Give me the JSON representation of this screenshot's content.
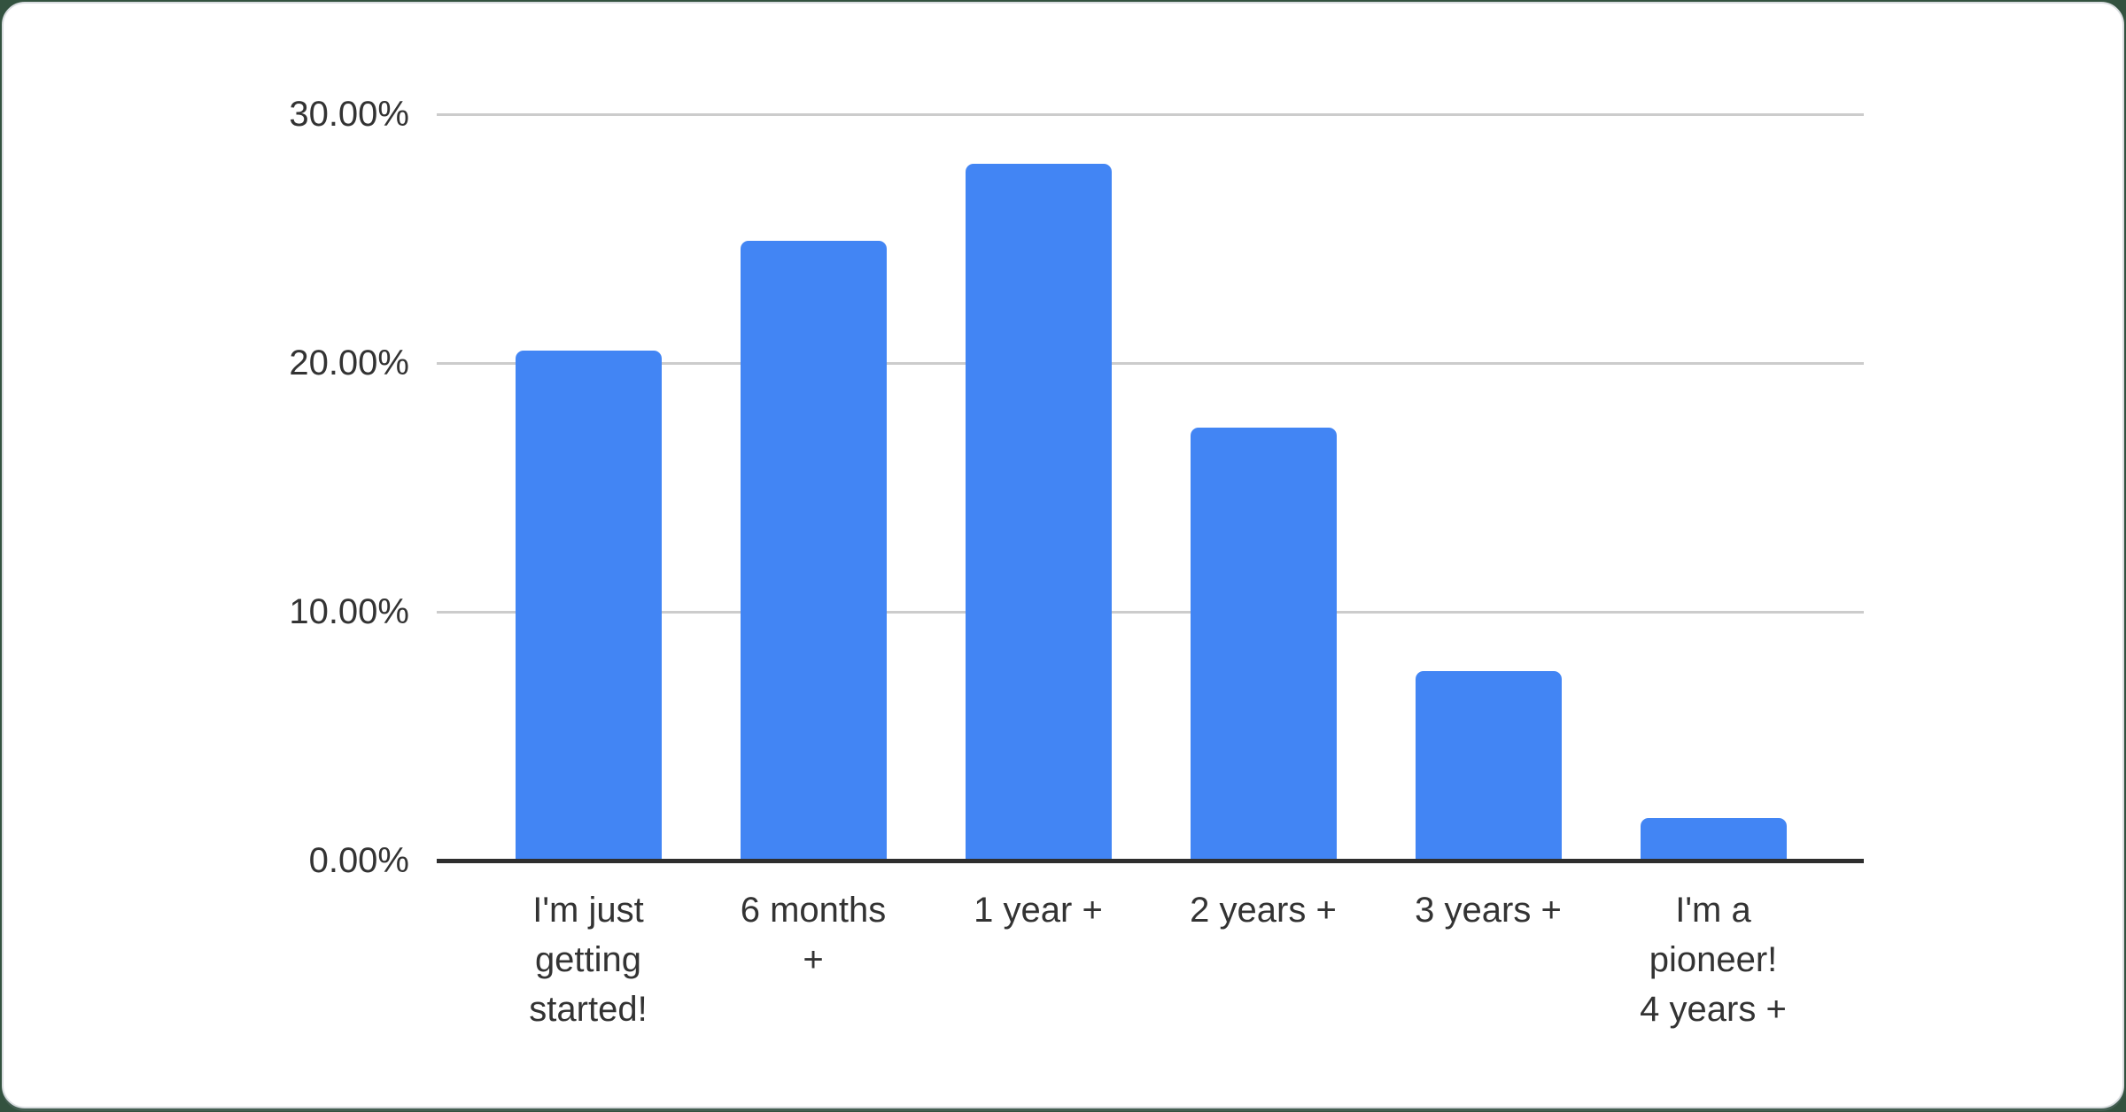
{
  "chart_data": {
    "type": "bar",
    "title": "",
    "categories": [
      "I'm just getting started!",
      "6 months +",
      "1 year +",
      "2 years +",
      "3 years +",
      "I'm a pioneer! 4 years +"
    ],
    "category_display_lines": [
      "I'm just\ngetting\nstarted!",
      "6 months\n+",
      "1 year +",
      "2 years +",
      "3 years +",
      "I'm a\npioneer!\n4 years +"
    ],
    "values": [
      20.5,
      24.9,
      28.0,
      17.4,
      7.6,
      1.7
    ],
    "unit": "%",
    "ylim": [
      0,
      30
    ],
    "yticks": [
      0,
      10,
      20,
      30
    ],
    "ytick_labels": [
      "0.00%",
      "10.00%",
      "20.00%",
      "30.00%"
    ],
    "grid": true,
    "legend": "none",
    "colors": {
      "bar": "#4285f4",
      "gridline": "#cccccc",
      "axis_line": "#2e2e2e",
      "tick_label": "#333333",
      "card_background": "#ffffff",
      "card_border": "#d9dde0",
      "page_background": "#33523f"
    }
  }
}
